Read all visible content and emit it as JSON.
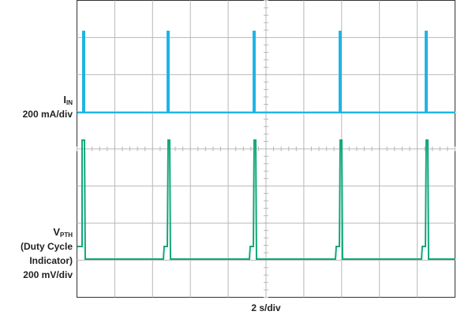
{
  "chart_data": {
    "type": "scope",
    "channels": [
      {
        "name": {
          "main": "I",
          "sub": "IN"
        },
        "lines": [
          "200 mA/div"
        ],
        "color": "#1fb5e6"
      },
      {
        "name": {
          "main": "V",
          "sub": "PTH"
        },
        "lines": [
          "(Duty Cycle",
          "Indicator)",
          "200 mV/div"
        ],
        "color": "#12a77a"
      }
    ],
    "x_label": "2 s/div"
  }
}
